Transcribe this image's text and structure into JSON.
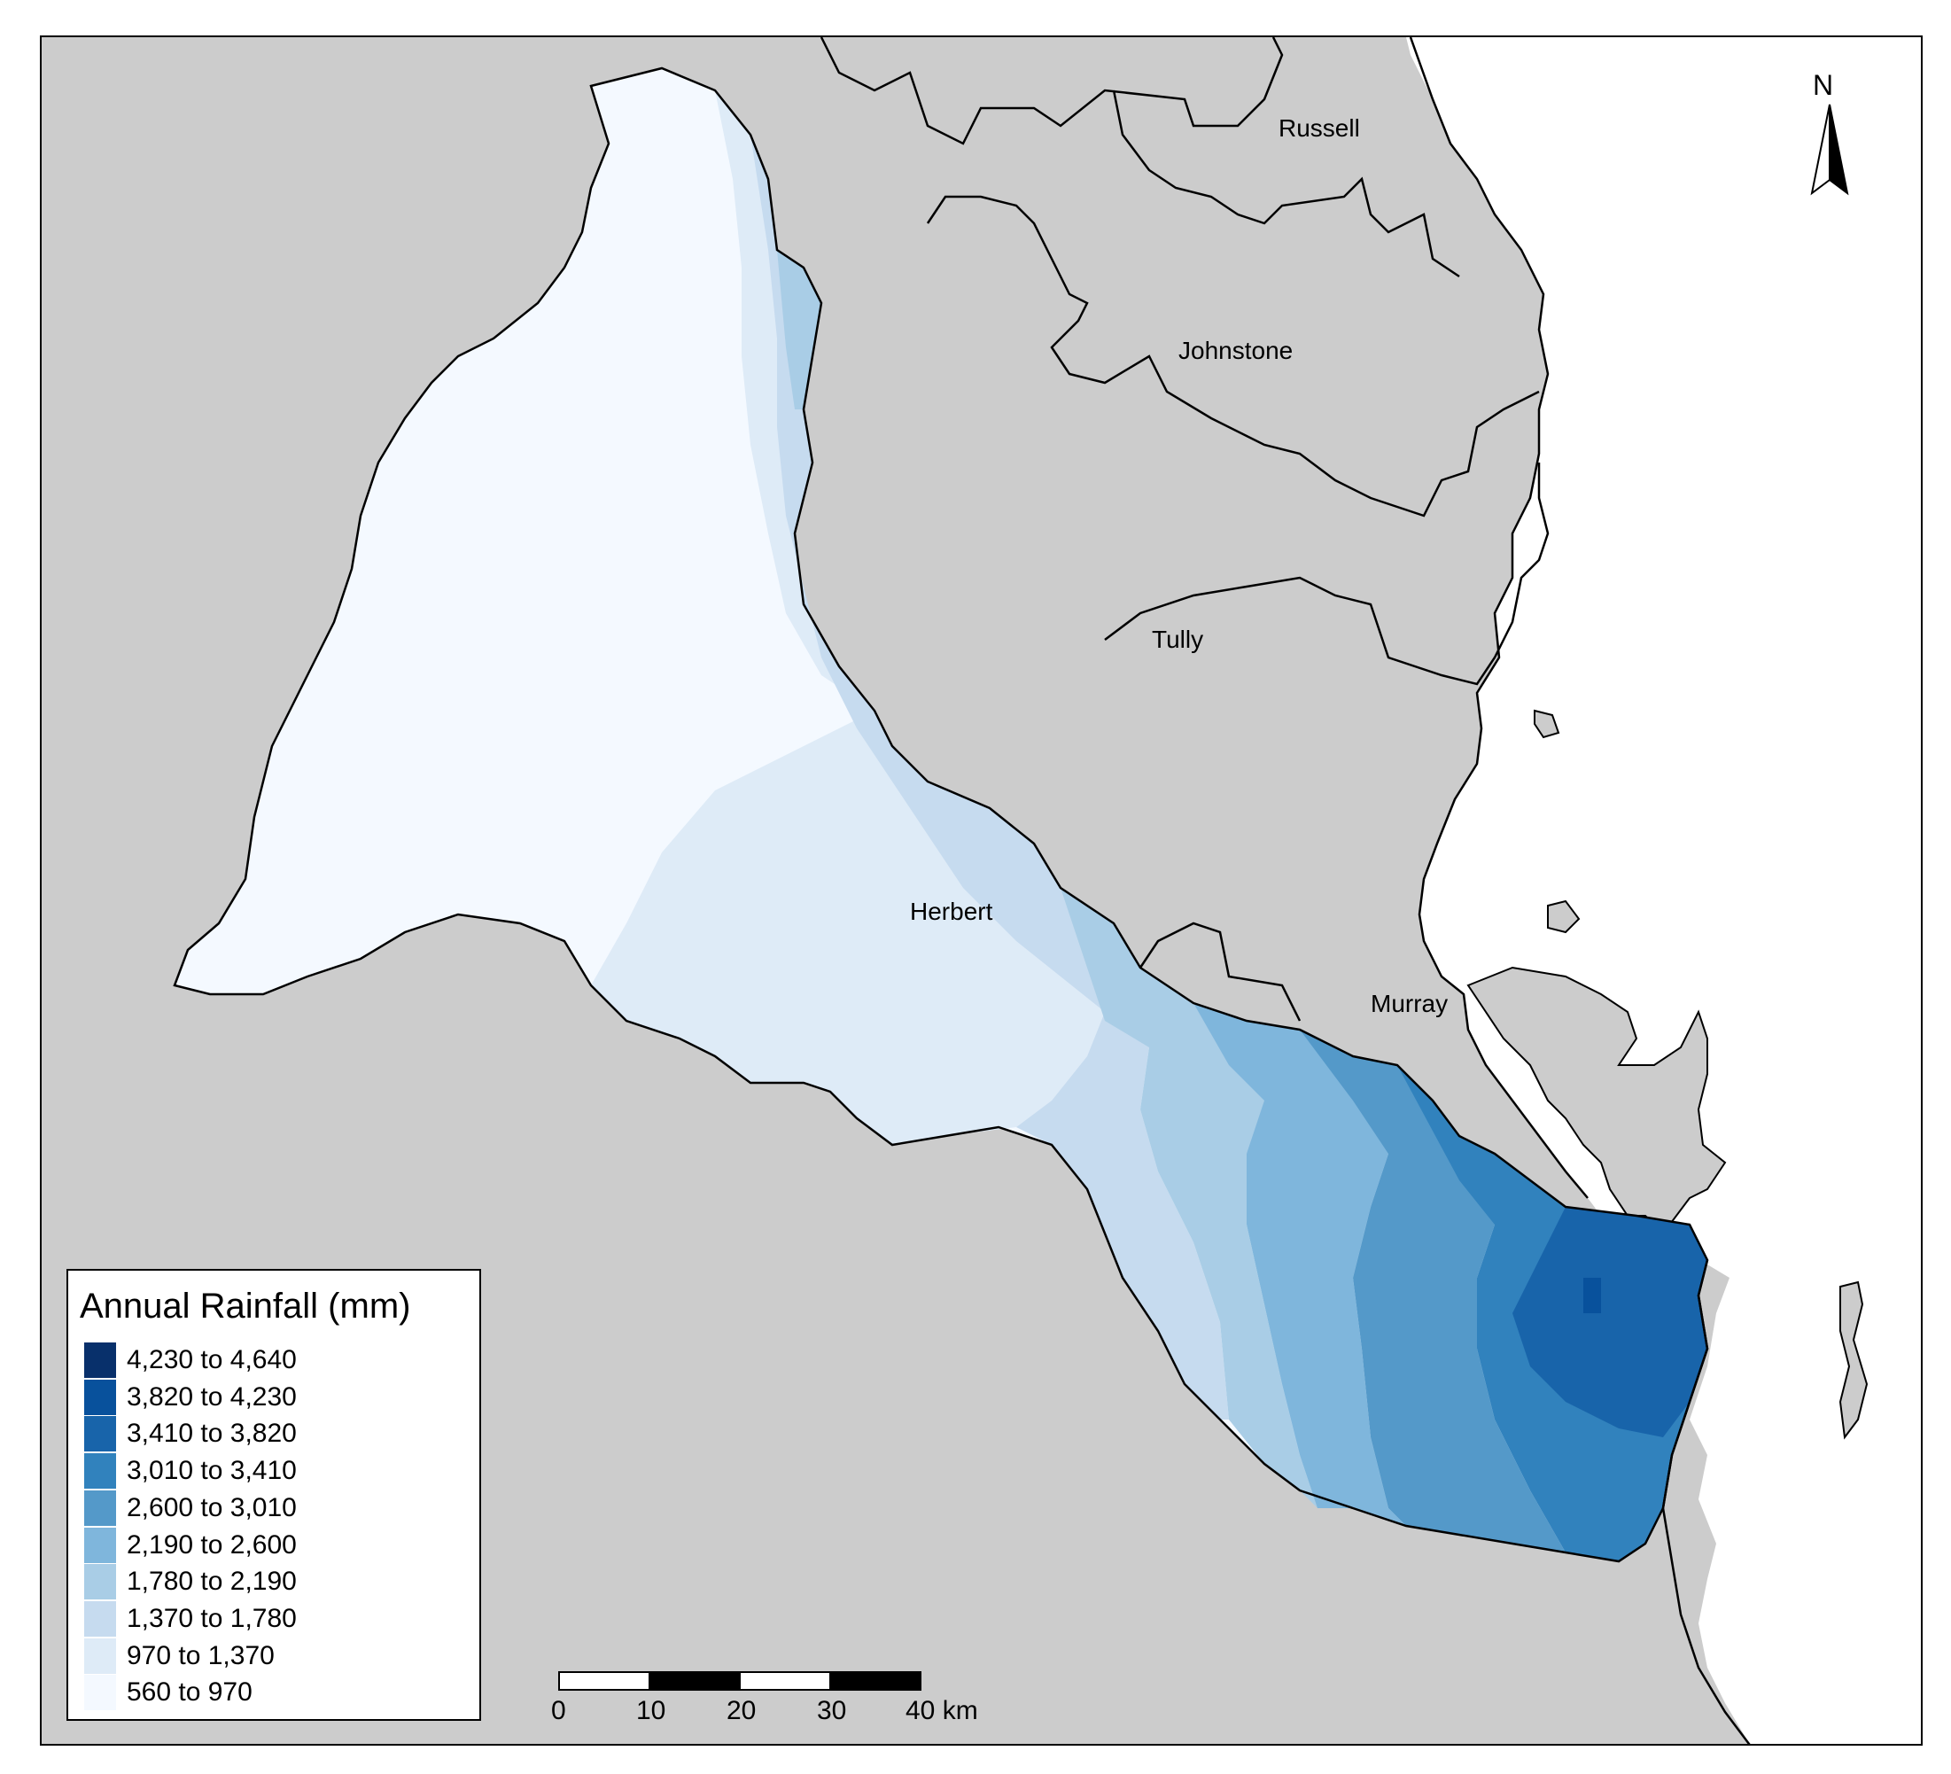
{
  "map": {
    "basins": [
      {
        "id": "russell",
        "label": "Russell"
      },
      {
        "id": "johnstone",
        "label": "Johnstone"
      },
      {
        "id": "tully",
        "label": "Tully"
      },
      {
        "id": "herbert",
        "label": "Herbert"
      },
      {
        "id": "murray",
        "label": "Murray"
      }
    ],
    "colors": {
      "land": "#cccccc",
      "sea": "#ffffff",
      "boundary": "#000000"
    }
  },
  "legend": {
    "title": "Annual Rainfall (mm)",
    "classes": [
      {
        "label": "4,230 to 4,640",
        "color": "#08306b"
      },
      {
        "label": "3,820 to 4,230",
        "color": "#08519c"
      },
      {
        "label": "3,410 to 3,820",
        "color": "#1864aa"
      },
      {
        "label": "3,010 to 3,410",
        "color": "#3182bd"
      },
      {
        "label": "2,600 to 3,010",
        "color": "#5499c9"
      },
      {
        "label": "2,190 to 2,600",
        "color": "#7fb6dc"
      },
      {
        "label": "1,780 to 2,190",
        "color": "#a9cde6"
      },
      {
        "label": "1,370 to 1,780",
        "color": "#c6dbef"
      },
      {
        "label": "970 to 1,370",
        "color": "#deebf7"
      },
      {
        "label": "560 to 970",
        "color": "#f4f9ff"
      }
    ]
  },
  "north_arrow": {
    "label": "N"
  },
  "scale_bar": {
    "ticks": [
      "0",
      "10",
      "20",
      "30",
      "40 km"
    ]
  }
}
